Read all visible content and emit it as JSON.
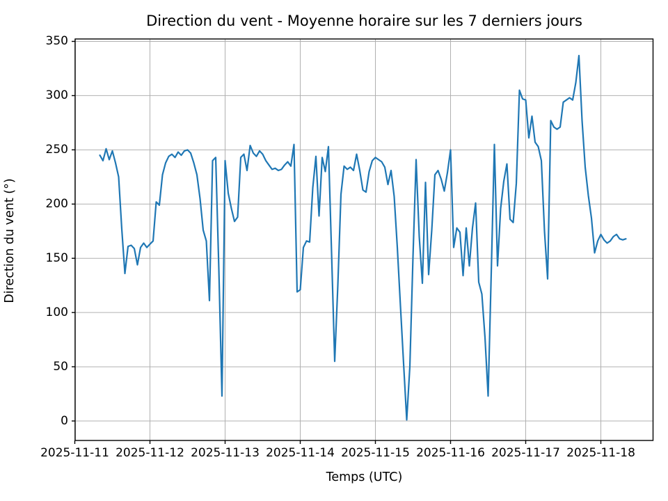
{
  "chart_data": {
    "type": "line",
    "title": "Direction du vent - Moyenne horaire sur les 7 derniers jours",
    "xlabel": "Temps (UTC)",
    "ylabel": "Direction du vent (°)",
    "x_tick_labels": [
      "2025-11-11",
      "2025-11-12",
      "2025-11-13",
      "2025-11-14",
      "2025-11-15",
      "2025-11-16",
      "2025-11-17",
      "2025-11-18"
    ],
    "y_ticks": [
      0,
      50,
      100,
      150,
      200,
      250,
      300,
      350
    ],
    "ylim": [
      -18,
      352
    ],
    "grid": true,
    "legend": "none",
    "line_color": "#1f77b4",
    "grid_color": "#b0b0b0",
    "background_color": "#ffffff",
    "series": [
      {
        "name": "Direction du vent (moyenne horaire)",
        "start": "2025-11-11 08:00",
        "end": "2025-11-18 08:00",
        "interval_hours": 1,
        "values": [
          245,
          240,
          251,
          241,
          249,
          238,
          225,
          177,
          136,
          161,
          162,
          159,
          144,
          160,
          164,
          160,
          163,
          166,
          202,
          199,
          227,
          238,
          244,
          246,
          243,
          248,
          245,
          249,
          250,
          247,
          238,
          227,
          205,
          176,
          166,
          111,
          240,
          243,
          140,
          23,
          240,
          210,
          196,
          184,
          188,
          243,
          246,
          231,
          254,
          247,
          244,
          249,
          246,
          240,
          236,
          232,
          233,
          231,
          232,
          236,
          239,
          235,
          255,
          119,
          121,
          160,
          166,
          165,
          215,
          244,
          189,
          243,
          230,
          253,
          155,
          55,
          125,
          209,
          235,
          232,
          234,
          231,
          246,
          231,
          213,
          211,
          230,
          240,
          243,
          241,
          239,
          234,
          218,
          231,
          207,
          160,
          106,
          53,
          1,
          50,
          151,
          241,
          170,
          127,
          220,
          135,
          176,
          227,
          231,
          223,
          212,
          229,
          250,
          160,
          178,
          174,
          134,
          178,
          143,
          178,
          201,
          128,
          117,
          77,
          23,
          137,
          255,
          143,
          196,
          221,
          237,
          186,
          183,
          219,
          305,
          297,
          296,
          261,
          281,
          257,
          253,
          240,
          175,
          131,
          277,
          271,
          269,
          271,
          294,
          296,
          298,
          296,
          312,
          337,
          277,
          234,
          208,
          187,
          155,
          166,
          172,
          167,
          164,
          166,
          170,
          172,
          168,
          167,
          168
        ]
      }
    ]
  }
}
